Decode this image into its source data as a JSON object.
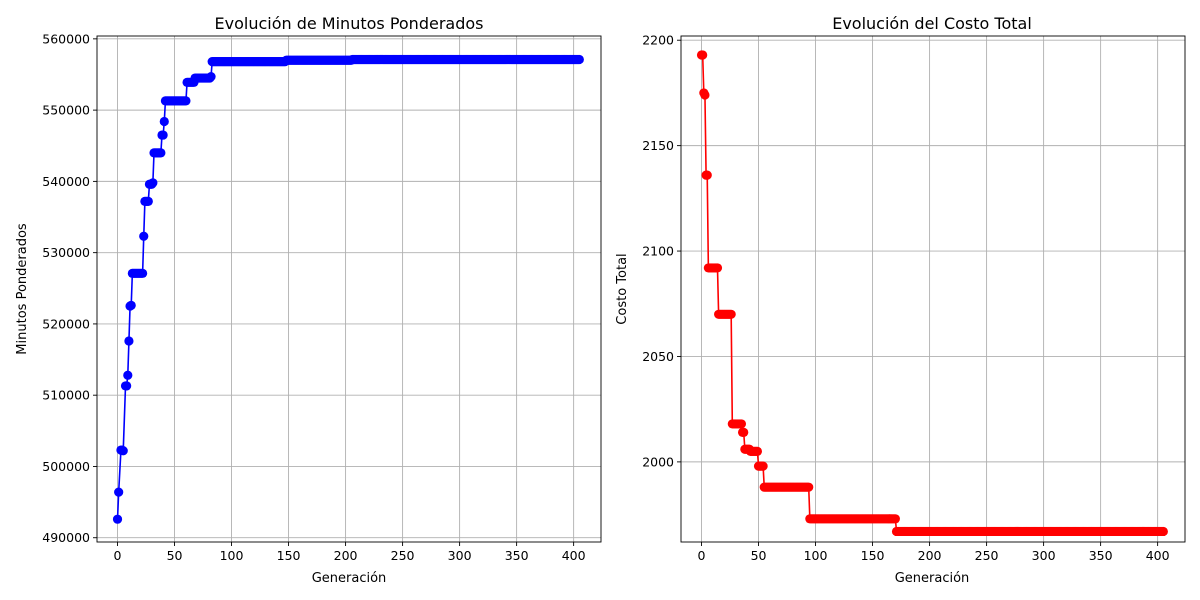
{
  "chart_data": [
    {
      "type": "line",
      "title": "Evolución de Minutos Ponderados",
      "xlabel": "Generación",
      "ylabel": "Minutos Ponderados",
      "color": "#0000ff",
      "marker": "circle",
      "grid": true,
      "xlim": [
        -18,
        424
      ],
      "ylim": [
        489400,
        560400
      ],
      "xticks": [
        0,
        50,
        100,
        150,
        200,
        250,
        300,
        350,
        400
      ],
      "yticks": [
        490000,
        500000,
        510000,
        520000,
        530000,
        540000,
        550000,
        560000
      ],
      "segments": [
        [
          0,
          492600
        ],
        [
          1,
          496400
        ],
        [
          3,
          502300
        ],
        [
          4,
          502300
        ],
        [
          5,
          502200
        ],
        [
          7,
          511300
        ],
        [
          8,
          511300
        ],
        [
          9,
          512800
        ],
        [
          10,
          517600
        ],
        [
          11,
          522500
        ],
        [
          12,
          522600
        ],
        [
          13,
          527100
        ],
        [
          22,
          527100
        ],
        [
          23,
          532300
        ],
        [
          24,
          537200
        ],
        [
          27,
          537200
        ],
        [
          28,
          539600
        ],
        [
          30,
          539600
        ],
        [
          31,
          539800
        ],
        [
          32,
          544000
        ],
        [
          38,
          544000
        ],
        [
          39,
          546500
        ],
        [
          40,
          546500
        ],
        [
          41,
          548400
        ],
        [
          42,
          551300
        ],
        [
          60,
          551300
        ],
        [
          61,
          553900
        ],
        [
          67,
          553900
        ],
        [
          68,
          554500
        ],
        [
          81,
          554500
        ],
        [
          82,
          554700
        ],
        [
          83,
          556800
        ],
        [
          147,
          556800
        ],
        [
          148,
          557000
        ],
        [
          205,
          557000
        ],
        [
          206,
          557100
        ],
        [
          405,
          557100
        ]
      ]
    },
    {
      "type": "line",
      "title": "Evolución del Costo Total",
      "xlabel": "Generación",
      "ylabel": "Costo Total",
      "color": "#ff0000",
      "marker": "circle",
      "grid": true,
      "xlim": [
        -18,
        424
      ],
      "ylim": [
        1962,
        2202
      ],
      "xticks": [
        0,
        50,
        100,
        150,
        200,
        250,
        300,
        350,
        400
      ],
      "yticks": [
        2000,
        2050,
        2100,
        2150,
        2200
      ],
      "segments": [
        [
          0,
          2193
        ],
        [
          1,
          2193
        ],
        [
          2,
          2175
        ],
        [
          3,
          2174
        ],
        [
          4,
          2136
        ],
        [
          5,
          2136
        ],
        [
          6,
          2092
        ],
        [
          14,
          2092
        ],
        [
          15,
          2070
        ],
        [
          26,
          2070
        ],
        [
          27,
          2018
        ],
        [
          35,
          2018
        ],
        [
          36,
          2014
        ],
        [
          37,
          2014
        ],
        [
          38,
          2006
        ],
        [
          42,
          2006
        ],
        [
          43,
          2005
        ],
        [
          49,
          2005
        ],
        [
          50,
          1998
        ],
        [
          54,
          1998
        ],
        [
          55,
          1988
        ],
        [
          94,
          1988
        ],
        [
          95,
          1973
        ],
        [
          170,
          1973
        ],
        [
          171,
          1967
        ],
        [
          405,
          1967
        ]
      ]
    }
  ]
}
